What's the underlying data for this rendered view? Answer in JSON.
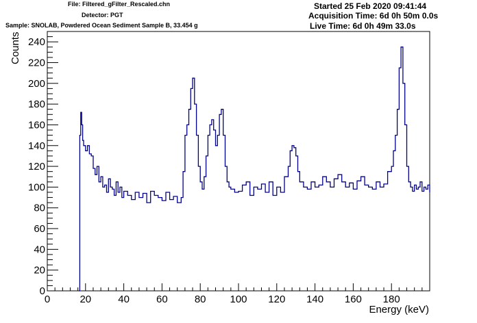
{
  "header": {
    "file": "File: Filtered_gFilter_Rescaled.chn",
    "detector": "Detector: PGT",
    "sample": "Sample: SNOLAB,  Powdered Ocean Sediment Sample B, 33.454 g",
    "started": "Started 25 Feb 2020 09:41:44",
    "acquisition_time": "Acquisition Time: 6d 0h 50m 0.0s",
    "live_time": "Live Time: 6d 0h 49m 33.0s"
  },
  "colors": {
    "series": "#00008b",
    "axis": "#000000",
    "background": "#ffffff"
  },
  "chart_data": {
    "type": "line",
    "title": "",
    "xlabel": "Energy (keV)",
    "ylabel": "Counts",
    "xlim": [
      0,
      200
    ],
    "ylim": [
      0,
      250
    ],
    "x_ticks": [
      0,
      20,
      40,
      60,
      80,
      100,
      120,
      140,
      160,
      180
    ],
    "y_ticks": [
      0,
      20,
      40,
      60,
      80,
      100,
      120,
      140,
      160,
      180,
      200,
      220,
      240
    ],
    "grid": false,
    "legend": "none",
    "series": [
      {
        "name": "",
        "x": [
          16.5,
          17,
          17.5,
          18,
          18.5,
          19,
          20,
          21,
          22,
          23,
          24,
          25,
          26,
          27,
          28,
          29,
          30,
          31,
          32,
          33,
          34,
          35,
          36,
          37,
          38,
          39,
          40,
          42,
          44,
          46,
          48,
          50,
          52,
          54,
          56,
          58,
          60,
          62,
          64,
          66,
          68,
          70,
          71,
          72,
          73,
          74,
          75,
          76,
          77,
          78,
          79,
          80,
          81,
          82,
          83,
          84,
          85,
          86,
          87,
          88,
          89,
          90,
          91,
          92,
          93,
          94,
          95,
          96,
          98,
          100,
          102,
          104,
          106,
          108,
          110,
          112,
          114,
          116,
          118,
          120,
          122,
          124,
          126,
          127,
          128,
          129,
          130,
          131,
          132,
          134,
          136,
          138,
          140,
          142,
          144,
          146,
          148,
          150,
          152,
          154,
          156,
          158,
          160,
          162,
          164,
          166,
          168,
          170,
          172,
          174,
          176,
          178,
          180,
          181,
          182,
          183,
          184,
          185,
          186,
          187,
          188,
          189,
          190,
          191,
          192,
          193,
          194,
          195,
          196,
          197,
          198,
          199,
          200
        ],
        "y": [
          0,
          150,
          172,
          160,
          145,
          140,
          135,
          140,
          132,
          130,
          118,
          112,
          120,
          105,
          110,
          100,
          102,
          95,
          108,
          100,
          98,
          92,
          105,
          95,
          100,
          90,
          96,
          92,
          88,
          95,
          90,
          94,
          85,
          96,
          92,
          90,
          87,
          95,
          88,
          91,
          85,
          90,
          115,
          150,
          160,
          175,
          195,
          205,
          180,
          150,
          120,
          105,
          98,
          110,
          130,
          150,
          160,
          165,
          155,
          140,
          150,
          170,
          175,
          150,
          120,
          105,
          100,
          98,
          95,
          96,
          102,
          105,
          92,
          100,
          98,
          103,
          95,
          105,
          92,
          100,
          95,
          110,
          120,
          135,
          140,
          138,
          130,
          115,
          105,
          100,
          98,
          105,
          100,
          102,
          110,
          105,
          100,
          108,
          112,
          105,
          100,
          104,
          98,
          106,
          110,
          102,
          100,
          98,
          105,
          100,
          103,
          115,
          120,
          135,
          150,
          175,
          215,
          235,
          200,
          160,
          120,
          105,
          100,
          96,
          102,
          98,
          100,
          105,
          96,
          100,
          98,
          102,
          95
        ]
      }
    ]
  }
}
